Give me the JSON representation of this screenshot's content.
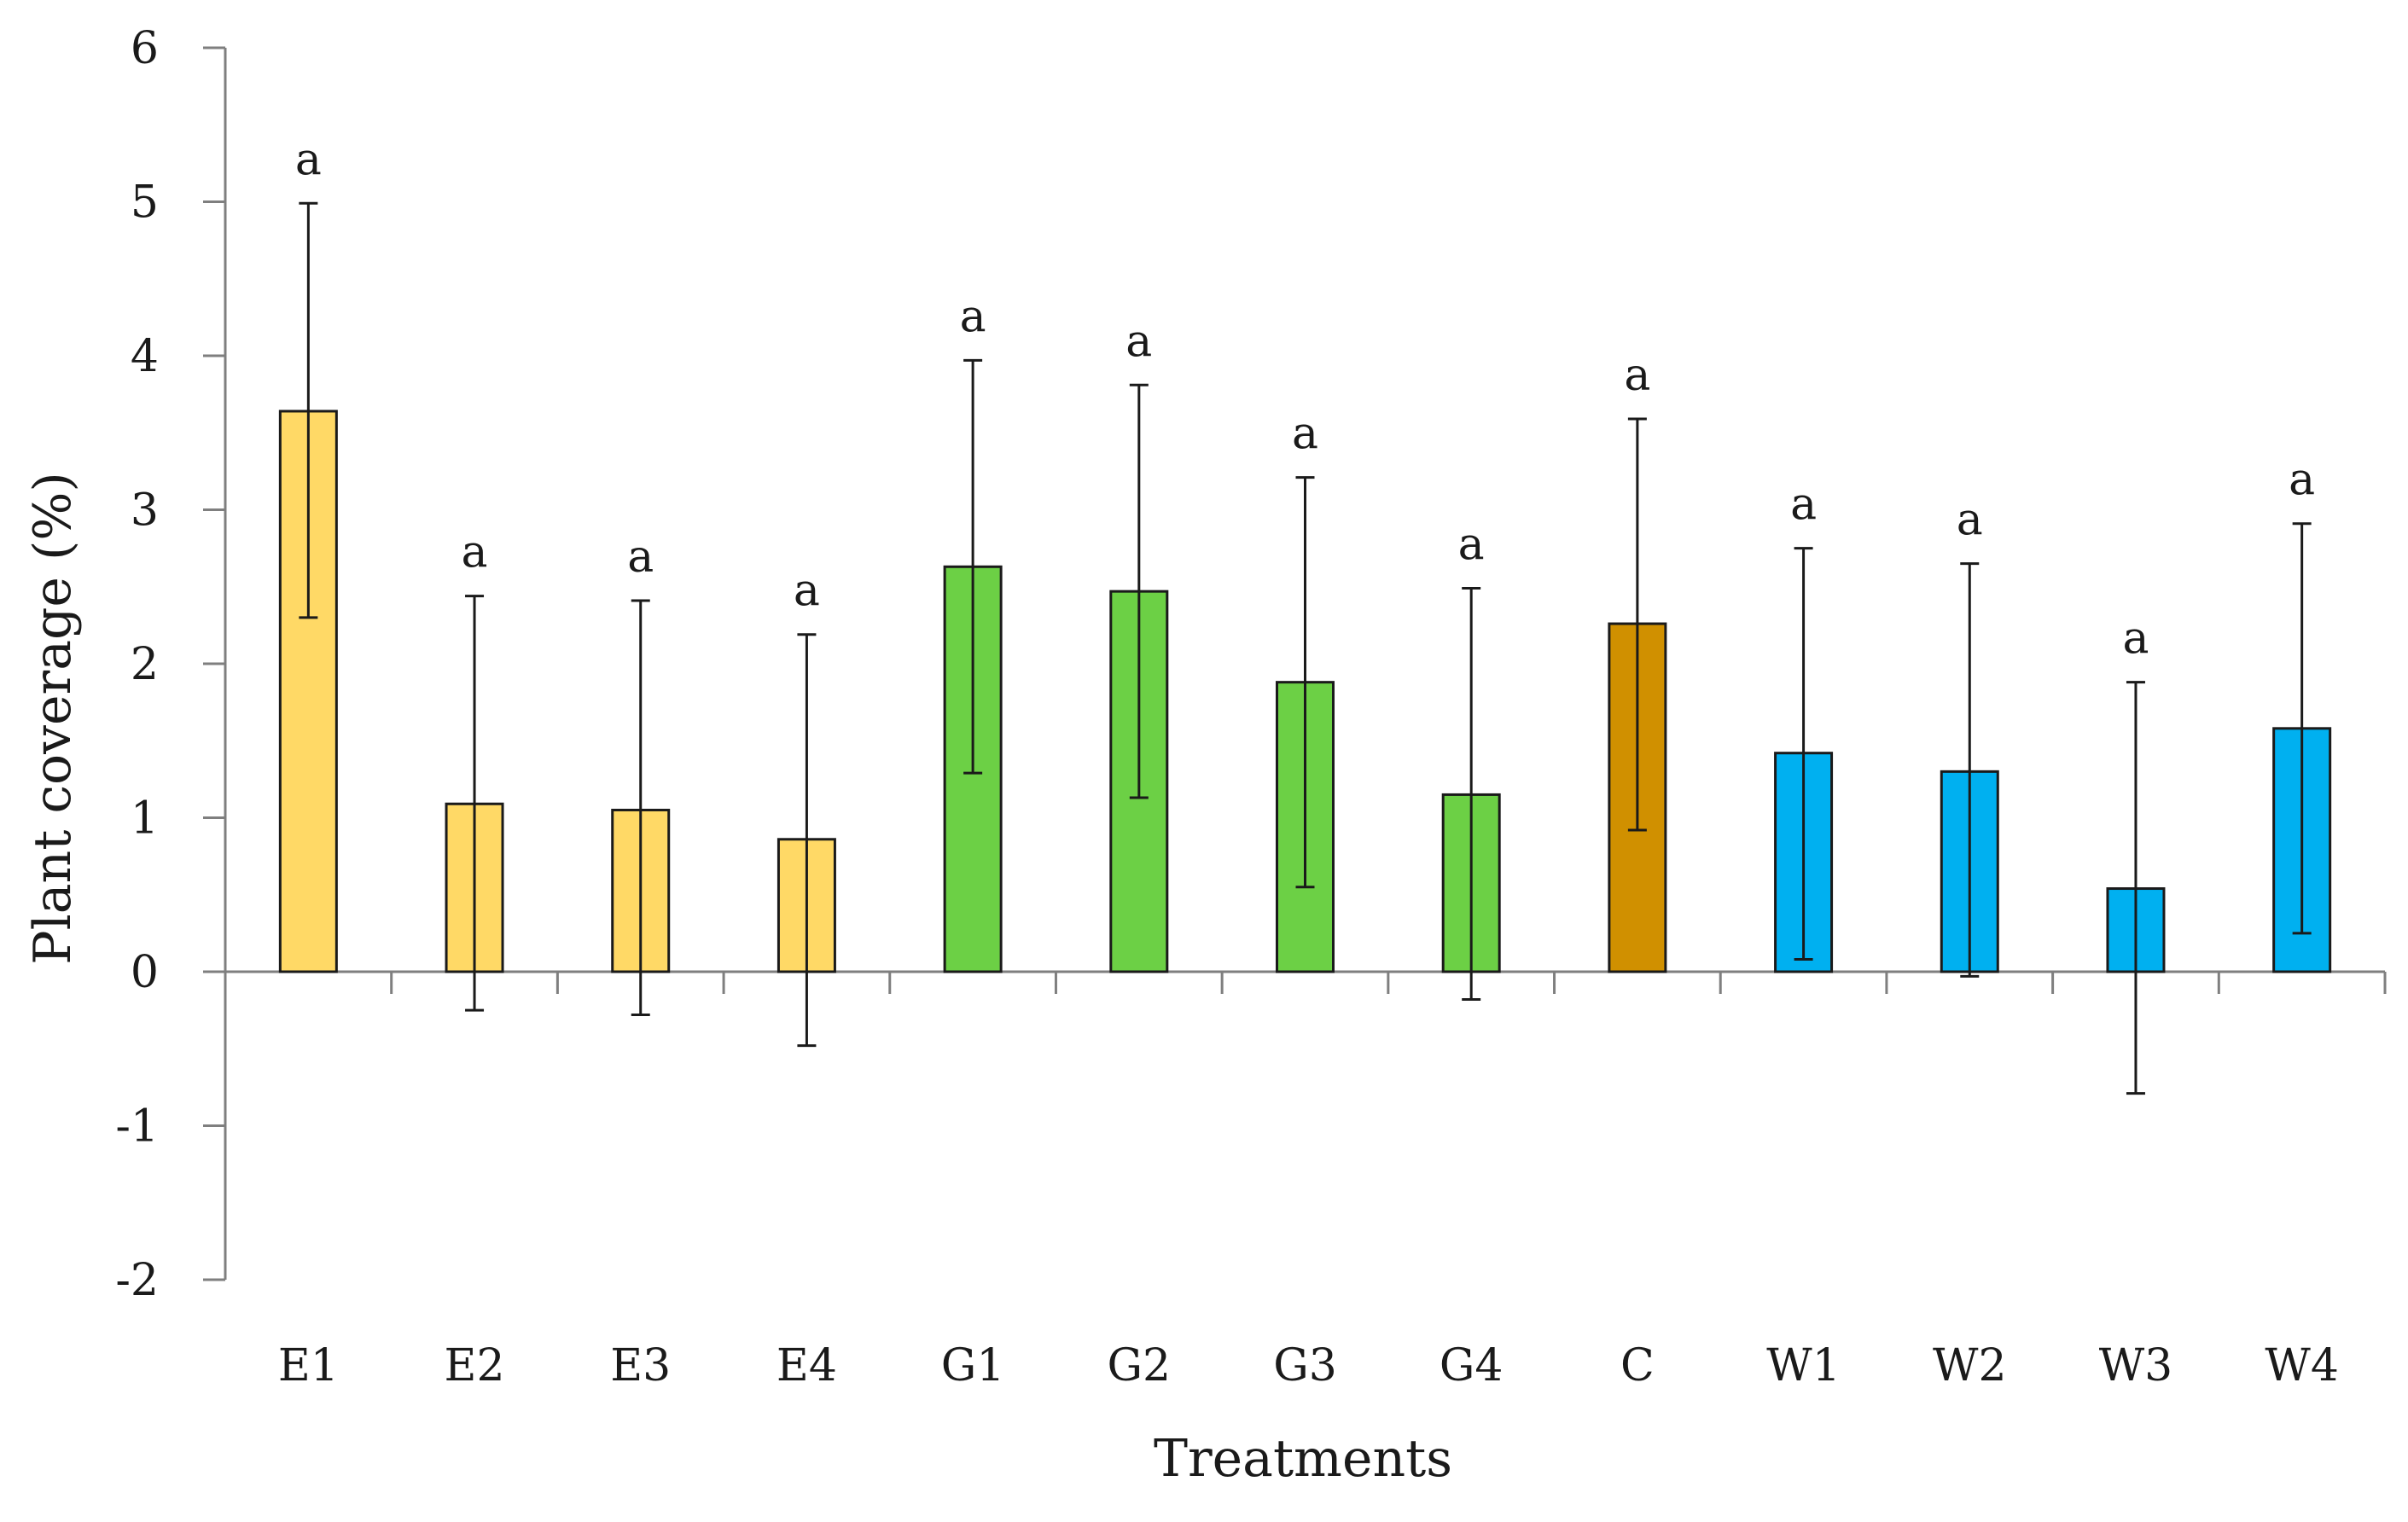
{
  "chart_data": {
    "type": "bar",
    "title": "",
    "xlabel": "Treatments",
    "ylabel": "Plant coverage (%)",
    "ylim": [
      -2,
      6
    ],
    "yticks": [
      "6",
      "5",
      "4",
      "3",
      "2",
      "1",
      "0",
      "-1",
      "-2"
    ],
    "categories": [
      "E1",
      "E2",
      "E3",
      "E4",
      "G1",
      "G2",
      "G3",
      "G4",
      "C",
      "W1",
      "W2",
      "W3",
      "W4"
    ],
    "values": [
      3.64,
      1.09,
      1.05,
      0.86,
      2.63,
      2.47,
      1.88,
      1.15,
      2.26,
      1.42,
      1.3,
      0.54,
      1.58
    ],
    "error_low": [
      2.3,
      -0.25,
      -0.28,
      -0.48,
      1.29,
      1.13,
      0.55,
      -0.18,
      0.92,
      0.08,
      -0.03,
      -0.79,
      0.25
    ],
    "error_high": [
      4.99,
      2.44,
      2.41,
      2.19,
      3.97,
      3.81,
      3.21,
      2.49,
      3.59,
      2.75,
      2.65,
      1.88,
      2.91
    ],
    "significance": [
      "a",
      "a",
      "a",
      "a",
      "a",
      "a",
      "a",
      "a",
      "a",
      "a",
      "a",
      "a",
      "a"
    ],
    "groups": [
      "E",
      "E",
      "E",
      "E",
      "G",
      "G",
      "G",
      "G",
      "C",
      "W",
      "W",
      "W",
      "W"
    ],
    "colors": {
      "E": "#FFD966",
      "G": "#6CD045",
      "C": "#D09000",
      "W": "#00B0F0",
      "axis": "#7f7f7f",
      "errorbar": "#1a1a1a"
    },
    "grid": false,
    "legend": "none"
  }
}
